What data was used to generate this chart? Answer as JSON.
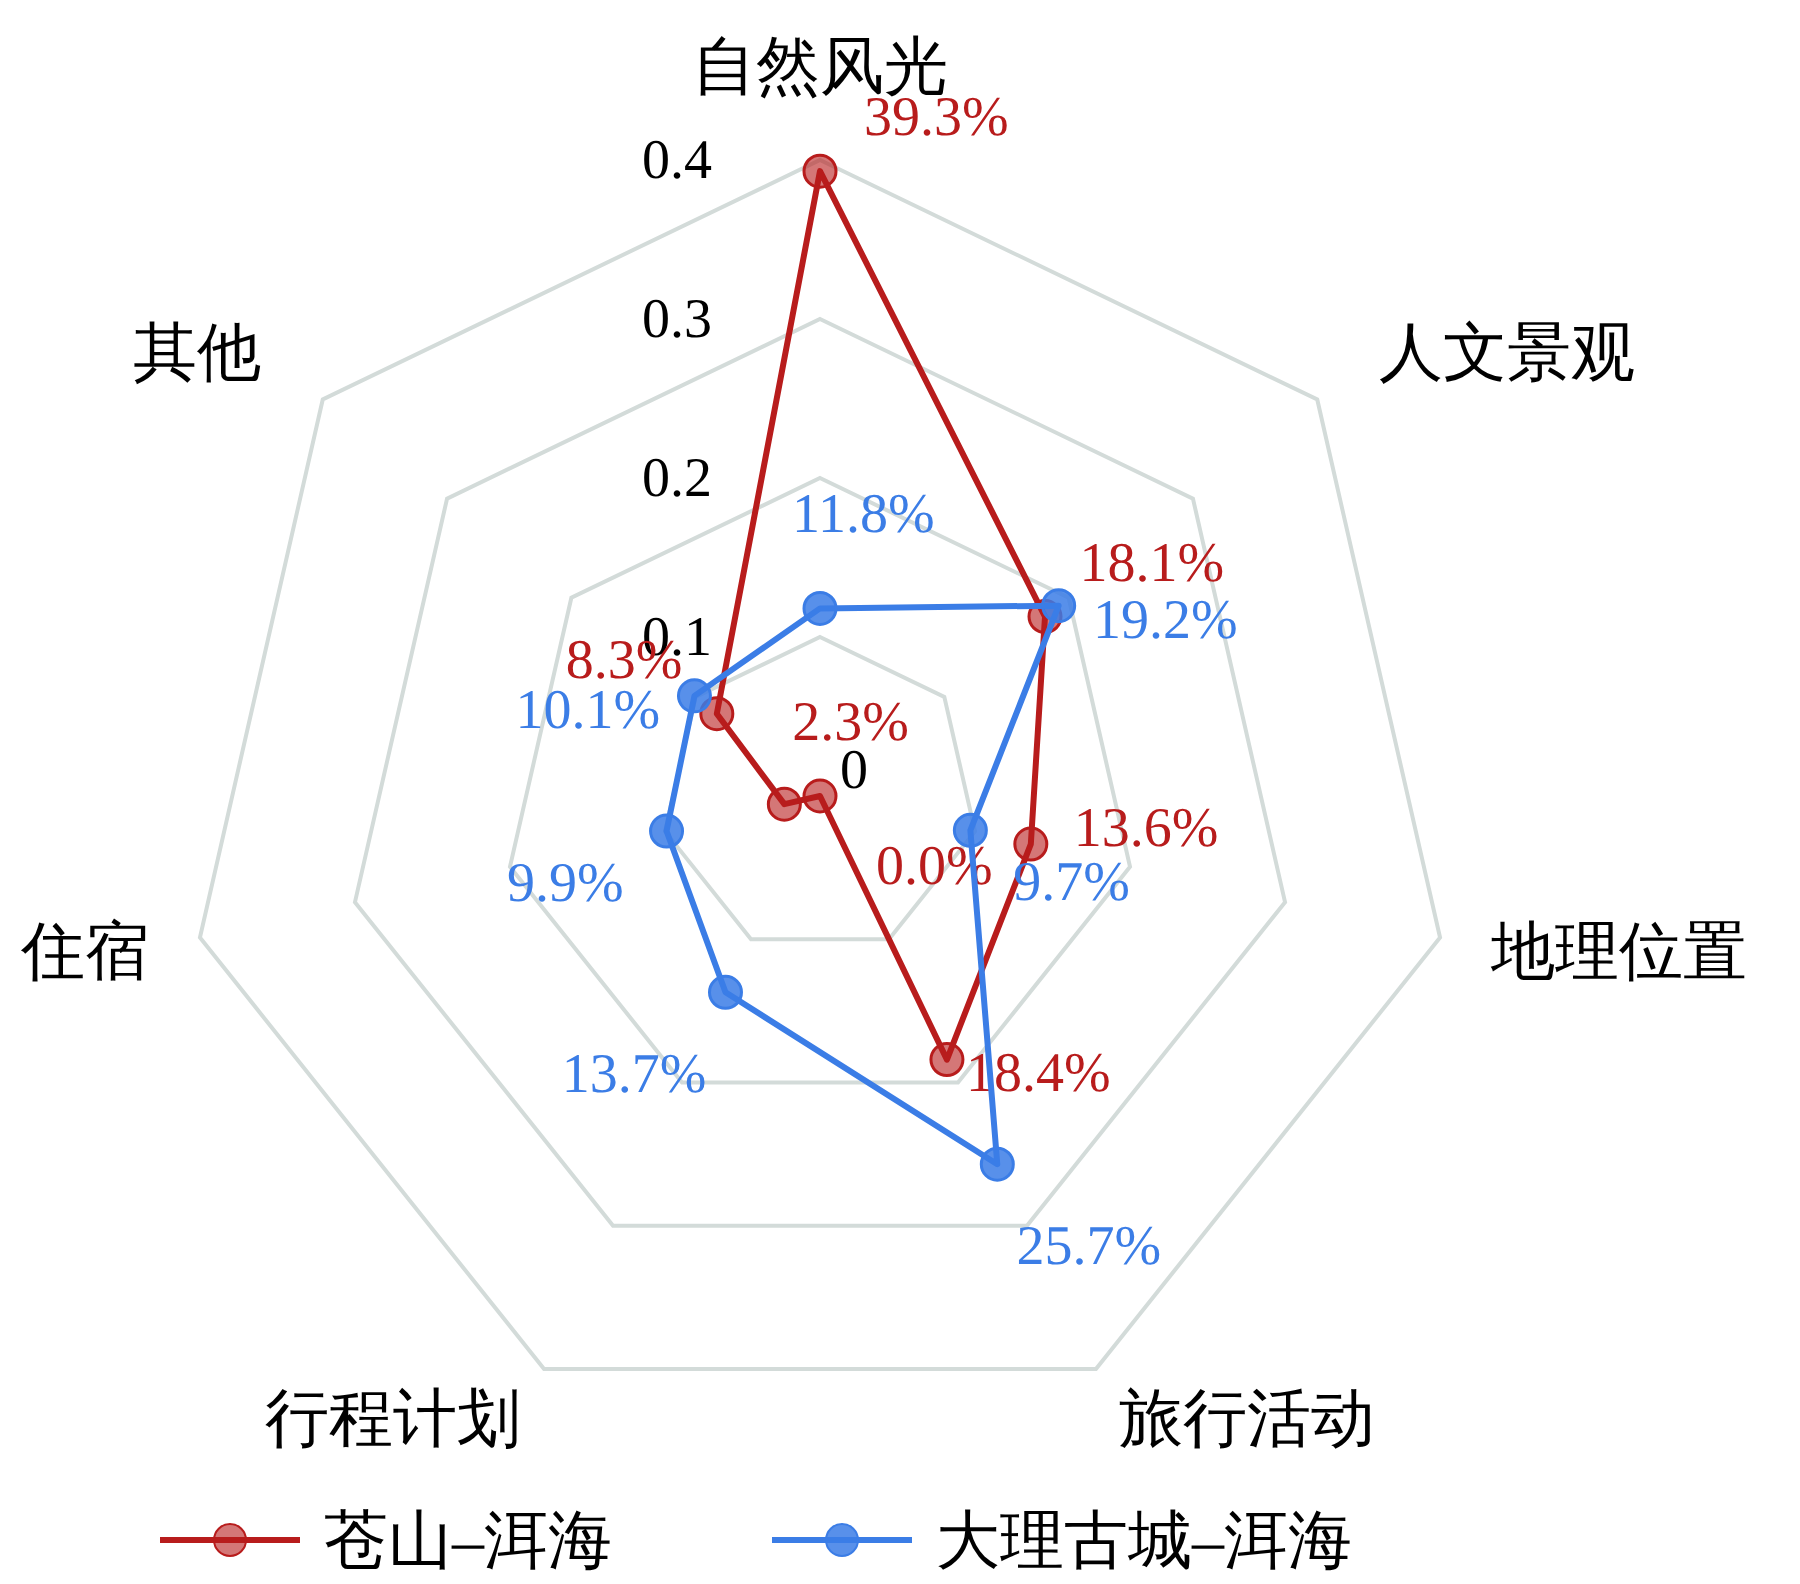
{
  "chart_data": {
    "type": "radar",
    "categories": [
      "自然风光",
      "人文景观",
      "地理位置",
      "旅行活动",
      "行程计划",
      "住宿",
      "其他"
    ],
    "ylim": [
      0,
      0.4
    ],
    "yticks": [
      {
        "value": 0,
        "label": "0"
      },
      0.1,
      0.2,
      0.3,
      0.4
    ],
    "grid": true,
    "legend": "bottom",
    "marker": "circle",
    "line_style": "solid",
    "series": [
      {
        "name": "苍山–洱海",
        "color": "#b81c1c",
        "values": [
          0.393,
          0.181,
          0.136,
          0.184,
          0.0,
          0.023,
          0.083
        ],
        "value_labels": [
          "39.3%",
          "18.1%",
          "13.6%",
          "18.4%",
          "0.0%",
          "2.3%",
          "8.3%"
        ]
      },
      {
        "name": "大理古城–洱海",
        "color": "#3b7de6",
        "values": [
          0.118,
          0.192,
          0.097,
          0.257,
          0.137,
          0.099,
          0.101
        ],
        "value_labels": [
          "11.8%",
          "19.2%",
          "9.7%",
          "25.7%",
          "13.7%",
          "9.9%",
          "10.1%"
        ]
      }
    ]
  }
}
